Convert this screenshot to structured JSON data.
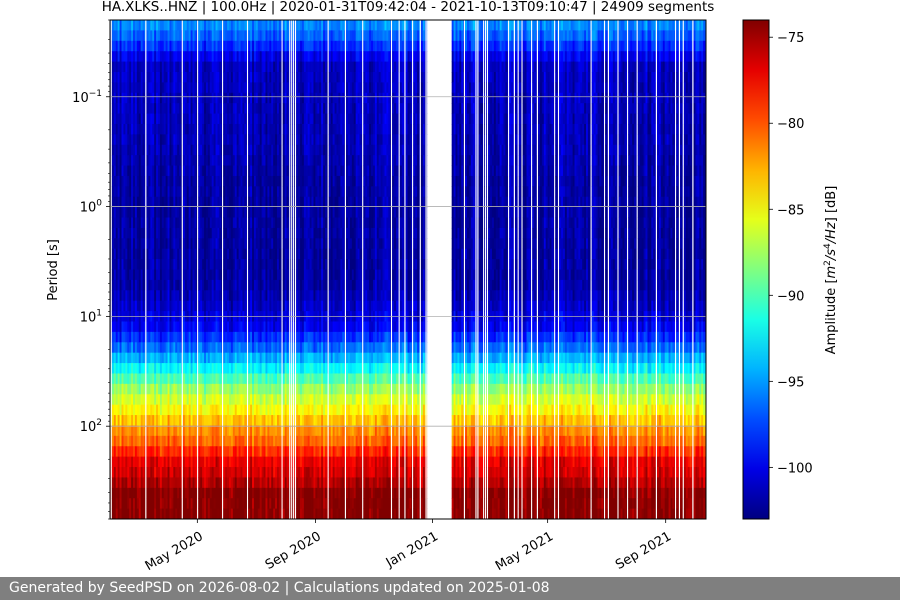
{
  "chart_data": {
    "type": "heatmap",
    "title": "HA.XLKS..HNZ | 100.0Hz | 2020-01-31T09:42:04 - 2021-10-13T09:10:47 | 24909 segments",
    "ylabel": "Period [s]",
    "y_scale": "log",
    "y_inverted": true,
    "xlim": [
      "2020-01-31",
      "2021-10-13"
    ],
    "ylim": [
      0.02,
      700
    ],
    "x_ticks": [
      {
        "date": "2020-05-01",
        "label": "May 2020"
      },
      {
        "date": "2020-09-01",
        "label": "Sep 2020"
      },
      {
        "date": "2021-01-01",
        "label": "Jan 2021"
      },
      {
        "date": "2021-05-01",
        "label": "May 2021"
      },
      {
        "date": "2021-09-01",
        "label": "Sep 2021"
      }
    ],
    "y_ticks": [
      {
        "value": 0.1,
        "base": "10",
        "exp": "−1"
      },
      {
        "value": 1,
        "base": "10",
        "exp": "0"
      },
      {
        "value": 10,
        "base": "10",
        "exp": "1"
      },
      {
        "value": 100,
        "base": "10",
        "exp": "2"
      }
    ],
    "grid": true,
    "data_gap": [
      "2020-12-27",
      "2021-01-20"
    ],
    "colorbar": {
      "label_parts": [
        "Amplitude [",
        "m",
        "2",
        "/s",
        "4",
        "/Hz",
        "] [dB]"
      ],
      "range": [
        -103,
        -74
      ],
      "ticks": [
        {
          "value": -75,
          "label": "−75"
        },
        {
          "value": -80,
          "label": "−80"
        },
        {
          "value": -85,
          "label": "−85"
        },
        {
          "value": -90,
          "label": "−90"
        },
        {
          "value": -95,
          "label": "−95"
        },
        {
          "value": -100,
          "label": "−100"
        }
      ],
      "colormap": "jet"
    },
    "amplitude_profile": [
      {
        "period": 0.02,
        "db": -95
      },
      {
        "period": 0.03,
        "db": -97
      },
      {
        "period": 0.05,
        "db": -101
      },
      {
        "period": 0.3,
        "db": -101.5
      },
      {
        "period": 0.6,
        "db": -102
      },
      {
        "period": 5,
        "db": -102
      },
      {
        "period": 12,
        "db": -100
      },
      {
        "period": 20,
        "db": -96
      },
      {
        "period": 30,
        "db": -92
      },
      {
        "period": 50,
        "db": -87
      },
      {
        "period": 80,
        "db": -84
      },
      {
        "period": 100,
        "db": -82
      },
      {
        "period": 150,
        "db": -80
      },
      {
        "period": 200,
        "db": -77
      },
      {
        "period": 300,
        "db": -76
      },
      {
        "period": 400,
        "db": -74
      },
      {
        "period": 700,
        "db": -74
      }
    ]
  },
  "footer": {
    "text": "Generated by SeedPSD on 2026-08-02 | Calculations updated on 2025-01-08"
  }
}
